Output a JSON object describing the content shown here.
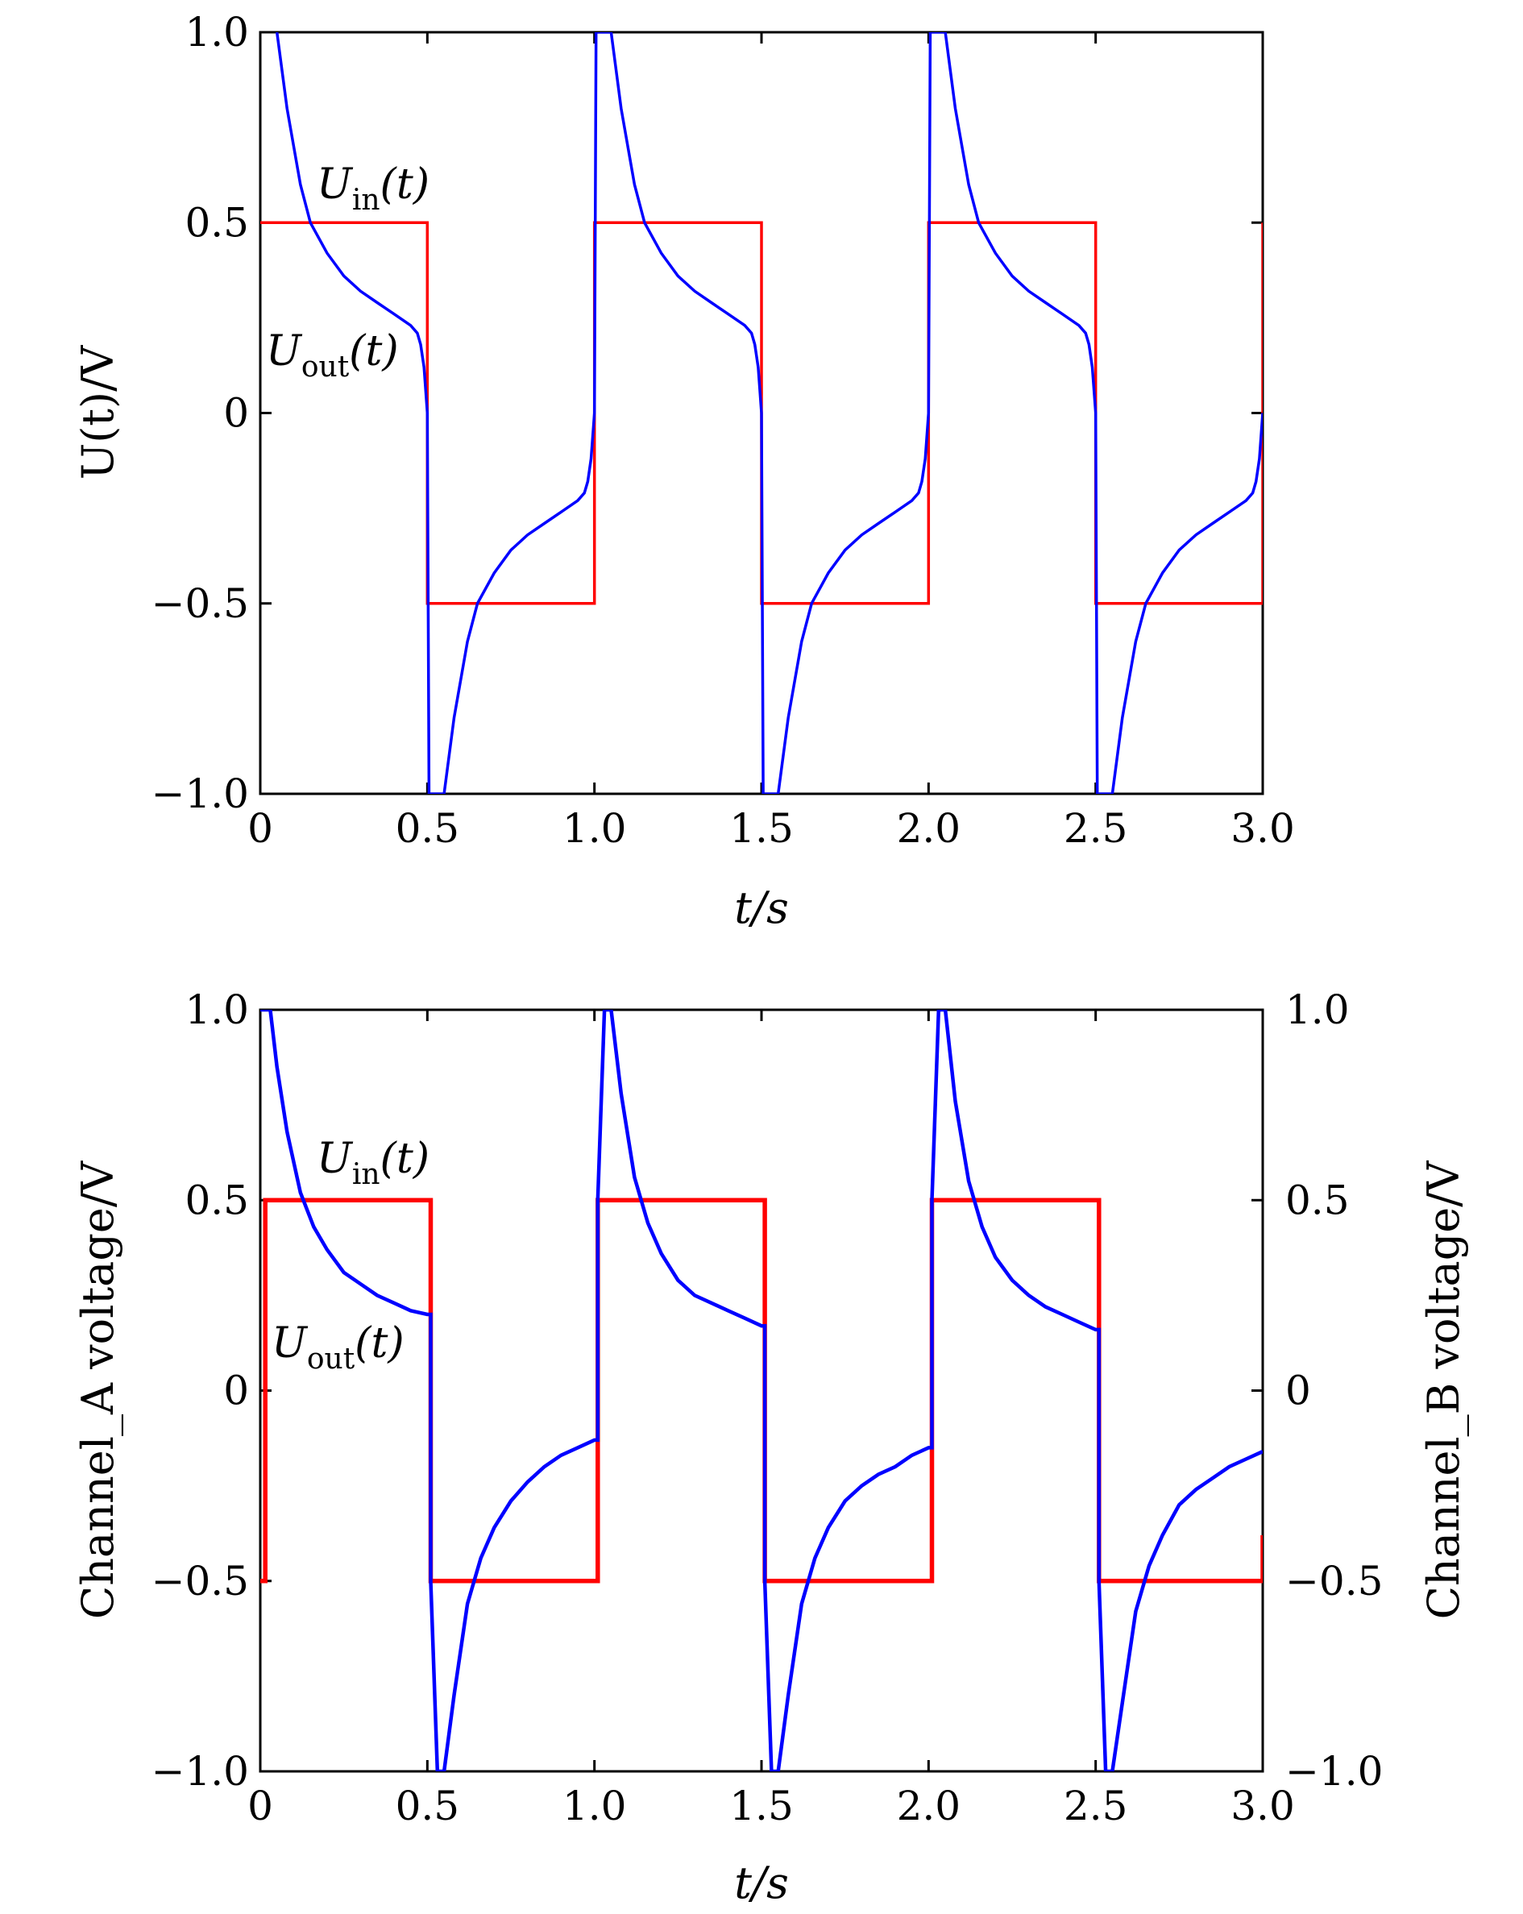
{
  "colors": {
    "input": "#ff0000",
    "output": "#0000ff",
    "axes": "#000000"
  },
  "chart_data": [
    {
      "type": "line",
      "xlabel": "t/s",
      "ylabel": "U(t)/V",
      "xlim": [
        0,
        3.0
      ],
      "ylim": [
        -1.0,
        1.0
      ],
      "xticks": [
        "0",
        "0.5",
        "1.0",
        "1.5",
        "2.0",
        "2.5",
        "3.0"
      ],
      "yticks": [
        "−1.0",
        "−0.5",
        "0",
        "0.5",
        "1.0"
      ],
      "annotations": {
        "input": "U_in(t)",
        "output": "U_out(t)"
      },
      "series": [
        {
          "name": "U_in(t)",
          "x": [
            0,
            0.5,
            0.5,
            1.0,
            1.0,
            1.5,
            1.5,
            2.0,
            2.0,
            2.5,
            2.5,
            3.0,
            3.0
          ],
          "y": [
            0.5,
            0.5,
            -0.5,
            -0.5,
            0.5,
            0.5,
            -0.5,
            -0.5,
            0.5,
            0.5,
            -0.5,
            -0.5,
            0.5
          ]
        },
        {
          "name": "U_out(t)",
          "x": [
            0.05,
            0.08,
            0.12,
            0.15,
            0.2,
            0.25,
            0.3,
            0.35,
            0.4,
            0.45,
            0.47,
            0.48,
            0.49,
            0.5,
            0.505,
            0.51,
            0.55,
            0.58,
            0.62,
            0.65,
            0.7,
            0.75,
            0.8,
            0.85,
            0.9,
            0.95,
            0.97,
            0.98,
            0.99,
            1.0,
            1.005,
            1.01,
            1.05,
            1.08,
            1.12,
            1.15,
            1.2,
            1.25,
            1.3,
            1.35,
            1.4,
            1.45,
            1.47,
            1.48,
            1.49,
            1.5,
            1.505,
            1.51,
            1.55,
            1.58,
            1.62,
            1.65,
            1.7,
            1.75,
            1.8,
            1.85,
            1.9,
            1.95,
            1.97,
            1.98,
            1.99,
            2.0,
            2.005,
            2.01,
            2.05,
            2.08,
            2.12,
            2.15,
            2.2,
            2.25,
            2.3,
            2.35,
            2.4,
            2.45,
            2.47,
            2.48,
            2.49,
            2.5,
            2.505,
            2.51,
            2.55,
            2.58,
            2.62,
            2.65,
            2.7,
            2.75,
            2.8,
            2.85,
            2.9,
            2.95,
            2.97,
            2.98,
            2.99,
            3.0
          ],
          "y": [
            1.0,
            0.8,
            0.6,
            0.5,
            0.42,
            0.36,
            0.32,
            0.29,
            0.26,
            0.23,
            0.21,
            0.18,
            0.12,
            0.0,
            -1.0,
            -1.0,
            -1.0,
            -0.8,
            -0.6,
            -0.5,
            -0.42,
            -0.36,
            -0.32,
            -0.29,
            -0.26,
            -0.23,
            -0.21,
            -0.18,
            -0.12,
            0.0,
            1.0,
            1.0,
            1.0,
            0.8,
            0.6,
            0.5,
            0.42,
            0.36,
            0.32,
            0.29,
            0.26,
            0.23,
            0.21,
            0.18,
            0.12,
            0.0,
            -1.0,
            -1.0,
            -1.0,
            -0.8,
            -0.6,
            -0.5,
            -0.42,
            -0.36,
            -0.32,
            -0.29,
            -0.26,
            -0.23,
            -0.21,
            -0.18,
            -0.12,
            0.0,
            1.0,
            1.0,
            1.0,
            0.8,
            0.6,
            0.5,
            0.42,
            0.36,
            0.32,
            0.29,
            0.26,
            0.23,
            0.21,
            0.18,
            0.12,
            0.0,
            -1.0,
            -1.0,
            -1.0,
            -0.8,
            -0.6,
            -0.5,
            -0.42,
            -0.36,
            -0.32,
            -0.29,
            -0.26,
            -0.23,
            -0.21,
            -0.18,
            -0.12,
            0.0
          ]
        }
      ]
    },
    {
      "type": "line",
      "xlabel": "t/s",
      "ylabel": "Channel_A voltage/V",
      "ylabel_right": "Channel_B voltage/V",
      "xlim": [
        0,
        3.0
      ],
      "ylim": [
        -1.0,
        1.0
      ],
      "xticks": [
        "0",
        "0.5",
        "1.0",
        "1.5",
        "2.0",
        "2.5",
        "3.0"
      ],
      "yticks": [
        "−1.0",
        "−0.5",
        "0",
        "0.5",
        "1.0"
      ],
      "yticks_right": [
        "−1.0",
        "−0.5",
        "0",
        "0.5",
        "1.0"
      ],
      "annotations": {
        "input": "U_in(t)",
        "output": "U_out(t)"
      },
      "series": [
        {
          "name": "U_in(t)",
          "x": [
            0,
            0.015,
            0.015,
            0.51,
            0.51,
            1.01,
            1.01,
            1.51,
            1.51,
            2.01,
            2.01,
            2.51,
            2.51,
            3.0,
            3.0
          ],
          "y": [
            -0.5,
            -0.5,
            0.5,
            0.5,
            -0.5,
            -0.5,
            0.5,
            0.5,
            -0.5,
            -0.5,
            0.5,
            0.5,
            -0.5,
            -0.5,
            -0.38
          ]
        },
        {
          "name": "U_out(t)",
          "x": [
            0.0,
            0.01,
            0.03,
            0.05,
            0.08,
            0.12,
            0.16,
            0.2,
            0.25,
            0.3,
            0.35,
            0.4,
            0.45,
            0.5,
            0.51,
            0.51,
            0.53,
            0.55,
            0.58,
            0.62,
            0.66,
            0.7,
            0.75,
            0.8,
            0.85,
            0.9,
            0.95,
            1.0,
            1.01,
            1.01,
            1.03,
            1.05,
            1.08,
            1.12,
            1.16,
            1.2,
            1.25,
            1.3,
            1.35,
            1.4,
            1.45,
            1.5,
            1.51,
            1.51,
            1.53,
            1.55,
            1.58,
            1.62,
            1.66,
            1.7,
            1.75,
            1.8,
            1.85,
            1.9,
            1.95,
            2.0,
            2.01,
            2.01,
            2.03,
            2.05,
            2.08,
            2.12,
            2.16,
            2.2,
            2.25,
            2.3,
            2.35,
            2.4,
            2.45,
            2.5,
            2.51,
            2.51,
            2.53,
            2.55,
            2.58,
            2.62,
            2.66,
            2.7,
            2.75,
            2.8,
            2.85,
            2.9,
            2.95,
            3.0
          ],
          "y": [
            1.0,
            1.0,
            1.0,
            0.85,
            0.68,
            0.52,
            0.43,
            0.37,
            0.31,
            0.28,
            0.25,
            0.23,
            0.21,
            0.2,
            0.2,
            -0.5,
            -1.0,
            -1.0,
            -0.8,
            -0.56,
            -0.44,
            -0.36,
            -0.29,
            -0.24,
            -0.2,
            -0.17,
            -0.15,
            -0.13,
            -0.13,
            0.5,
            1.0,
            1.0,
            0.78,
            0.56,
            0.44,
            0.36,
            0.29,
            0.25,
            0.23,
            0.21,
            0.19,
            0.17,
            0.17,
            -0.5,
            -1.0,
            -1.0,
            -0.8,
            -0.56,
            -0.44,
            -0.36,
            -0.29,
            -0.25,
            -0.22,
            -0.2,
            -0.17,
            -0.15,
            -0.15,
            0.5,
            1.0,
            1.0,
            0.76,
            0.55,
            0.43,
            0.35,
            0.29,
            0.25,
            0.22,
            0.2,
            0.18,
            0.16,
            0.16,
            -0.5,
            -1.0,
            -1.0,
            -0.82,
            -0.58,
            -0.46,
            -0.38,
            -0.3,
            -0.26,
            -0.23,
            -0.2,
            -0.18,
            -0.16
          ]
        }
      ]
    }
  ]
}
